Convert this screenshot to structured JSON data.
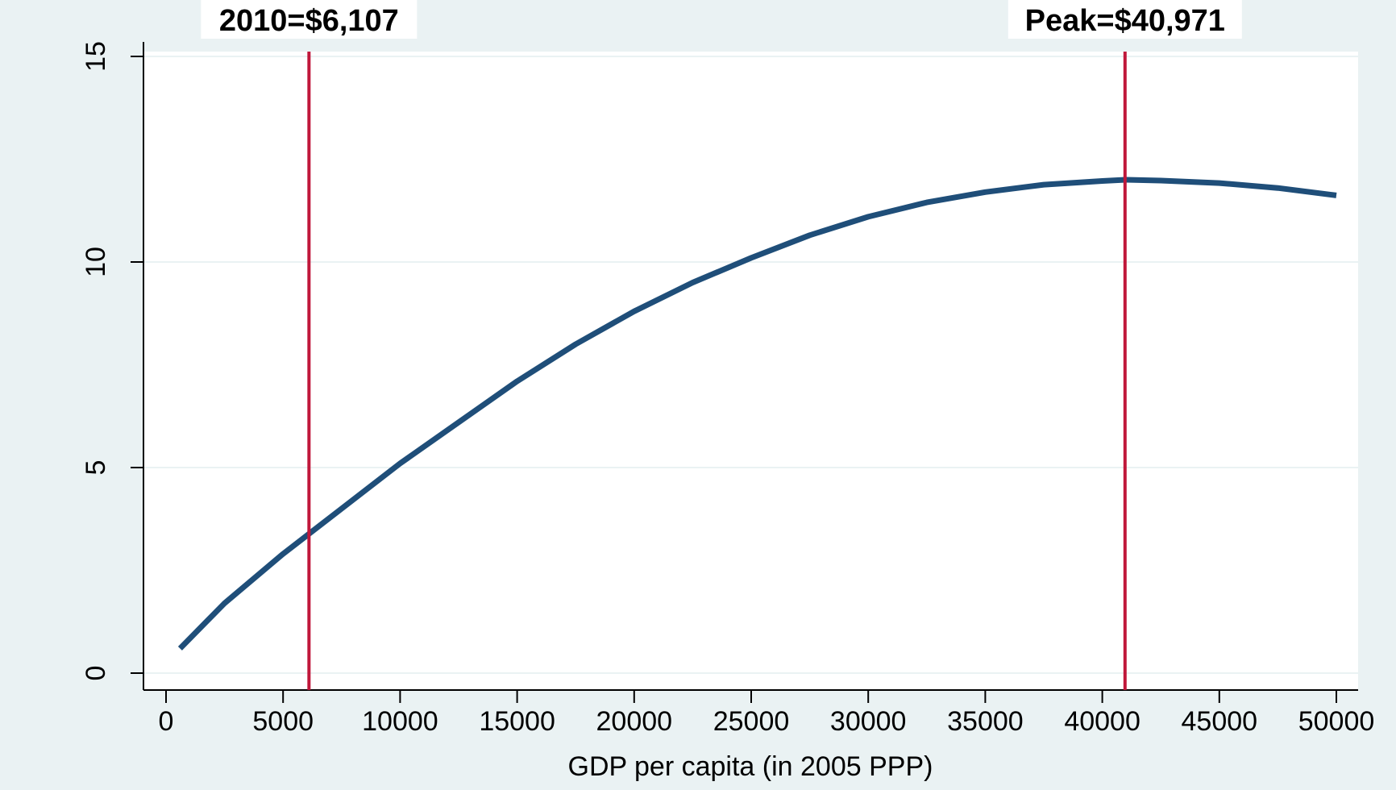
{
  "chart_data": {
    "type": "line",
    "title": "",
    "xlabel": "GDP per capita (in 2005 PPP)",
    "ylabel": "",
    "xlim": [
      0,
      50000
    ],
    "ylim": [
      0,
      15
    ],
    "grid": "horizontal",
    "x_ticks": [
      0,
      5000,
      10000,
      15000,
      20000,
      25000,
      30000,
      35000,
      40000,
      45000,
      50000
    ],
    "x_tick_labels": [
      "0",
      "5000",
      "10000",
      "15000",
      "20000",
      "25000",
      "30000",
      "35000",
      "40000",
      "45000",
      "50000"
    ],
    "y_ticks": [
      0,
      5,
      10,
      15
    ],
    "y_tick_labels": [
      "0",
      "5",
      "10",
      "15"
    ],
    "series": [
      {
        "color": "#1f4e79",
        "x": [
          600,
          2500,
          5000,
          7500,
          10000,
          12500,
          15000,
          17500,
          20000,
          22500,
          25000,
          27500,
          30000,
          32500,
          35000,
          37500,
          40000,
          41000,
          42500,
          45000,
          47500,
          50000
        ],
        "y": [
          0.6,
          1.7,
          2.9,
          4.0,
          5.1,
          6.1,
          7.1,
          8.0,
          8.8,
          9.5,
          10.1,
          10.65,
          11.1,
          11.45,
          11.7,
          11.88,
          11.97,
          12.0,
          11.98,
          11.92,
          11.8,
          11.62
        ]
      }
    ],
    "vlines": [
      {
        "x": 6107,
        "color": "#c0173a"
      },
      {
        "x": 40971,
        "color": "#c0173a"
      }
    ],
    "annotations": [
      {
        "text": "2010=$6,107",
        "x": 6107
      },
      {
        "text": "Peak=$40,971",
        "x": 40971
      }
    ],
    "colors": {
      "outer_background": "#eaf2f3",
      "plot_background": "#ffffff",
      "gridline": "#eaf2f3",
      "line": "#1f4e79",
      "vline": "#c0173a"
    }
  }
}
